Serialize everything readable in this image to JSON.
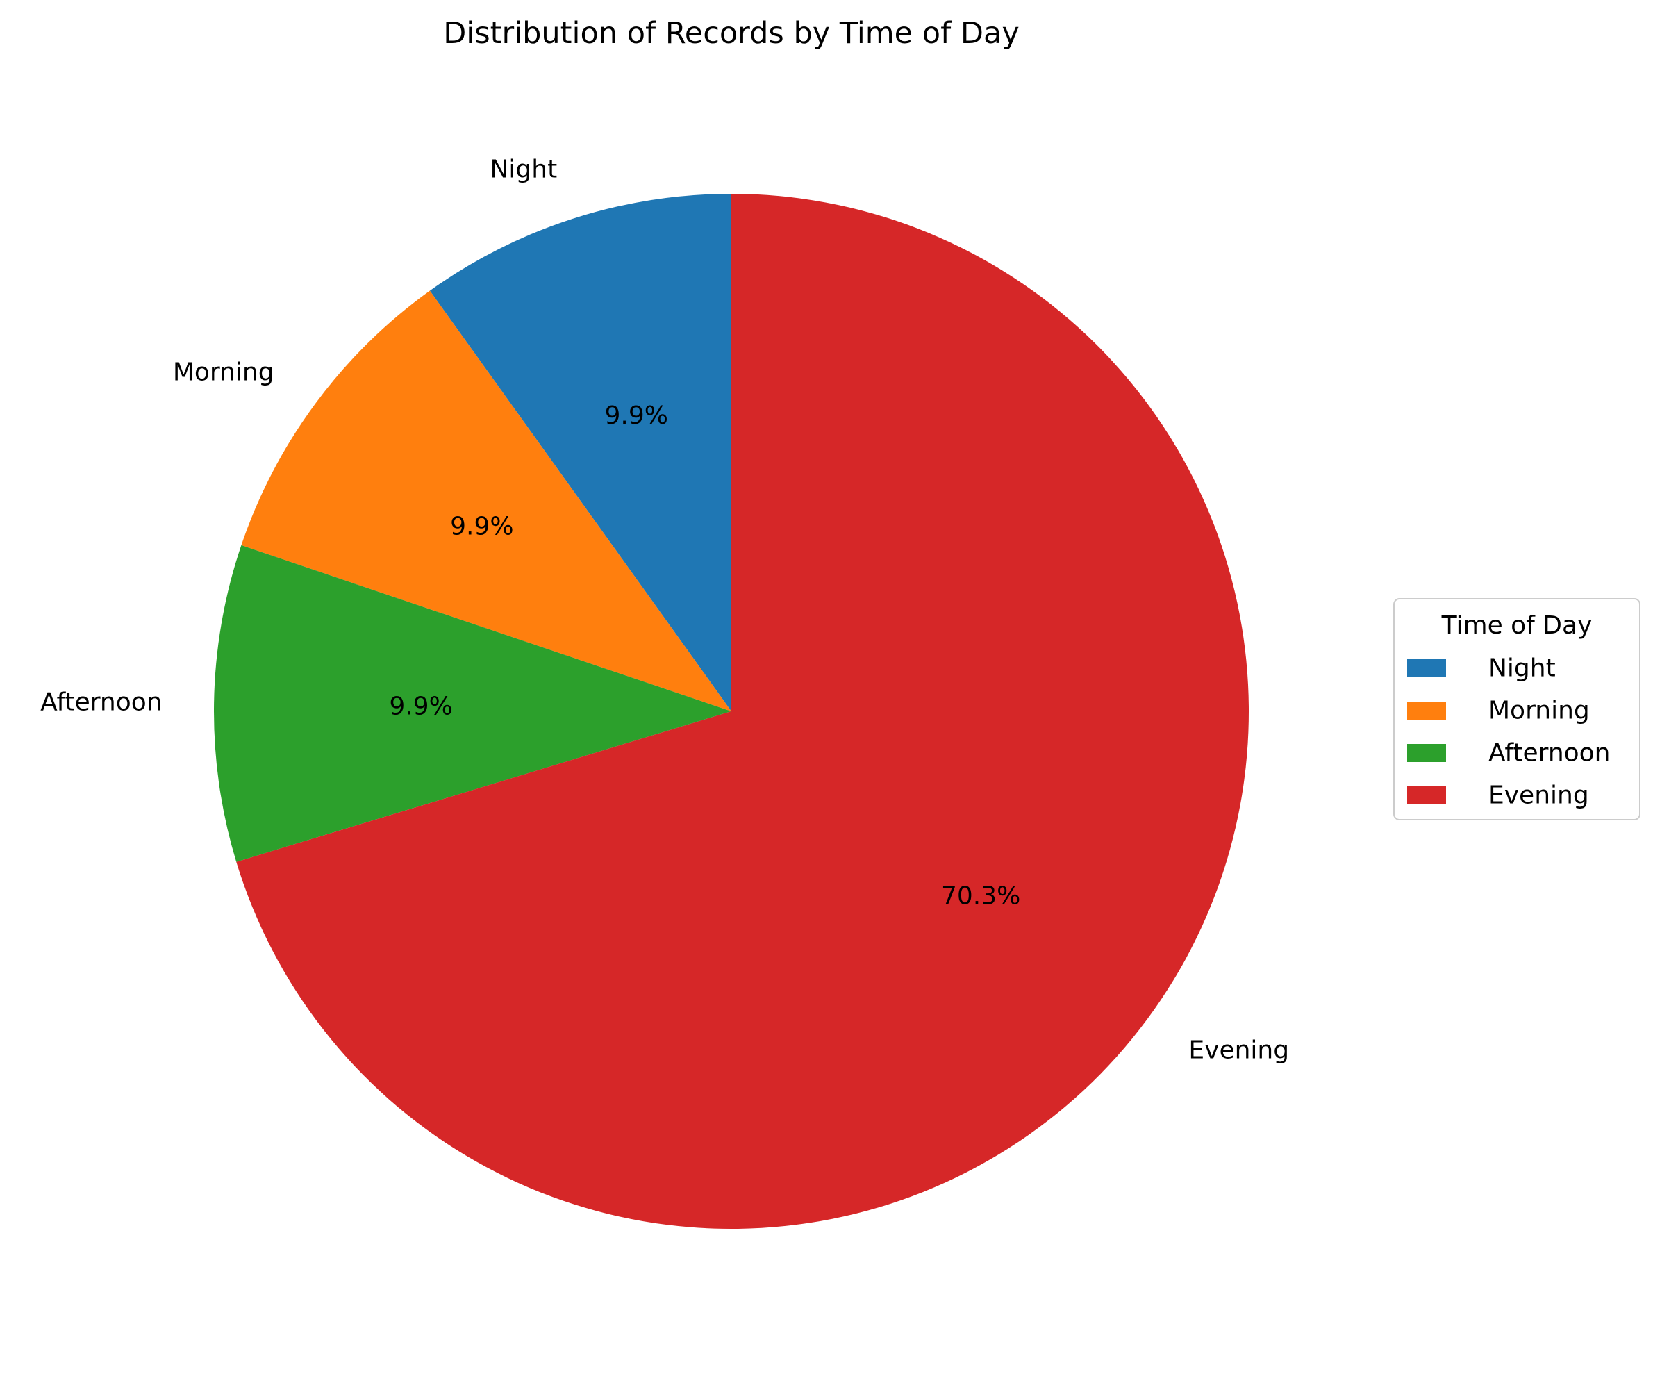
{
  "chart_data": {
    "type": "pie",
    "title": "Distribution of Records by Time of Day",
    "categories": [
      "Night",
      "Morning",
      "Afternoon",
      "Evening"
    ],
    "values": [
      9.9,
      9.9,
      9.9,
      70.3
    ],
    "data_labels": [
      "9.9%",
      "9.9%",
      "9.9%",
      "70.3%"
    ],
    "colors": [
      "#1f77b4",
      "#ff7f0e",
      "#2ca02c",
      "#d62728"
    ],
    "start_angle_deg": 90,
    "direction": "counterclockwise",
    "legend": {
      "title": "Time of Day",
      "placement": "right",
      "entries": [
        "Night",
        "Morning",
        "Afternoon",
        "Evening"
      ]
    }
  }
}
